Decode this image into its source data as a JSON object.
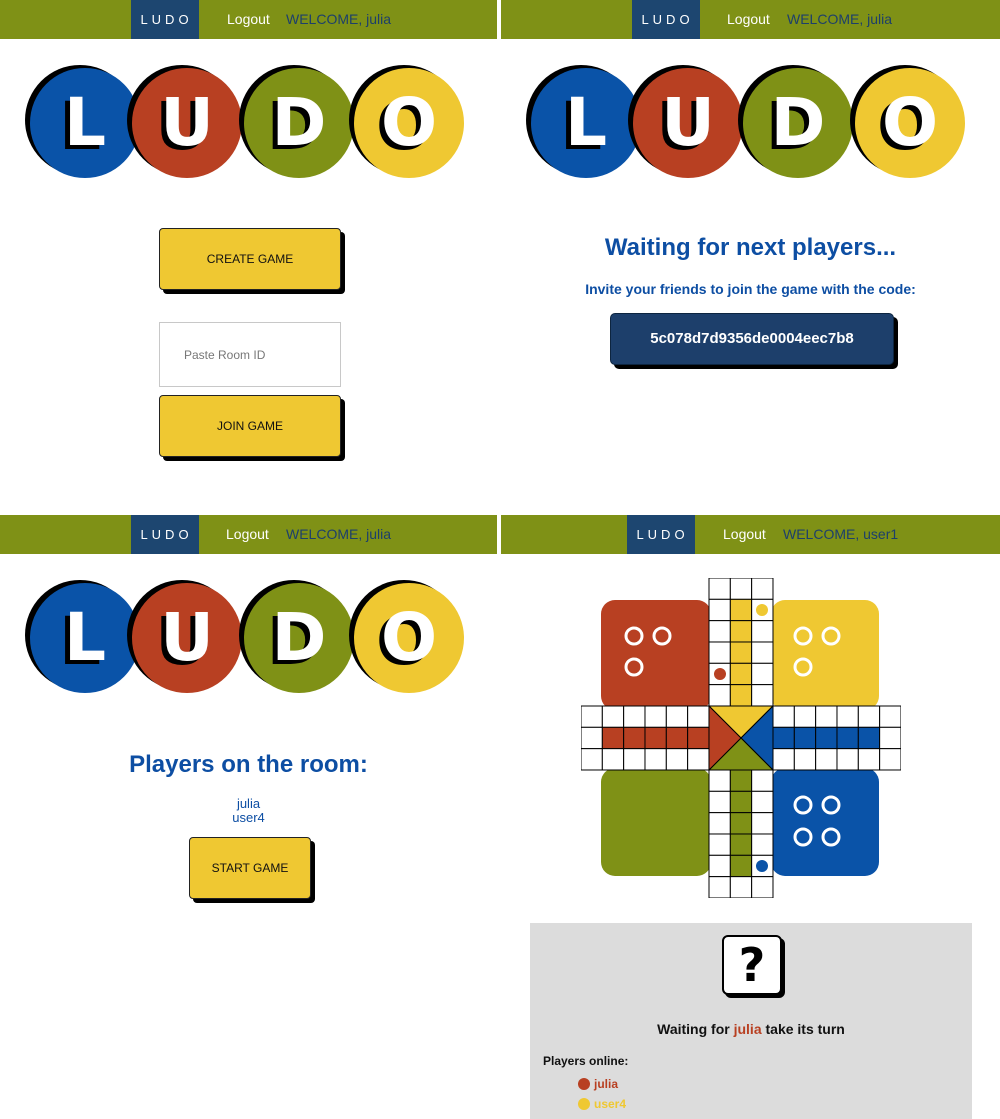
{
  "colors": {
    "nav_bg": "#7f9116",
    "brand_bg": "#1d4670",
    "blue": "#0a53a8",
    "red": "#b84022",
    "green": "#7f9116",
    "yellow": "#efc832",
    "title_blue": "#0d4ea3"
  },
  "logo": {
    "letters": [
      "L",
      "U",
      "D",
      "O"
    ]
  },
  "screen1": {
    "nav": {
      "brand": "LUDO",
      "logout": "Logout",
      "welcome": "WELCOME, julia"
    },
    "create_label": "CREATE GAME",
    "room_placeholder": "Paste Room ID",
    "join_label": "JOIN GAME"
  },
  "screen2": {
    "nav": {
      "brand": "LUDO",
      "logout": "Logout",
      "welcome": "WELCOME, julia"
    },
    "title": "Waiting for next players...",
    "invite": "Invite your friends to join the game with the code:",
    "code": "5c078d7d9356de0004eec7b8"
  },
  "screen3": {
    "nav": {
      "brand": "LUDO",
      "logout": "Logout",
      "welcome": "WELCOME, julia"
    },
    "title": "Players on the room:",
    "players": [
      "julia",
      "user4"
    ],
    "start_label": "START GAME"
  },
  "screen4": {
    "nav": {
      "brand": "LUDO",
      "logout": "Logout",
      "welcome": "WELCOME, user1"
    },
    "dice_face": "?",
    "turn_prefix": "Waiting for",
    "turn_player": "julia",
    "turn_suffix": "take its turn",
    "online_label": "Players online:",
    "online": [
      {
        "name": "julia",
        "color": "#b84022"
      },
      {
        "name": "user4",
        "color": "#efc832"
      }
    ]
  }
}
